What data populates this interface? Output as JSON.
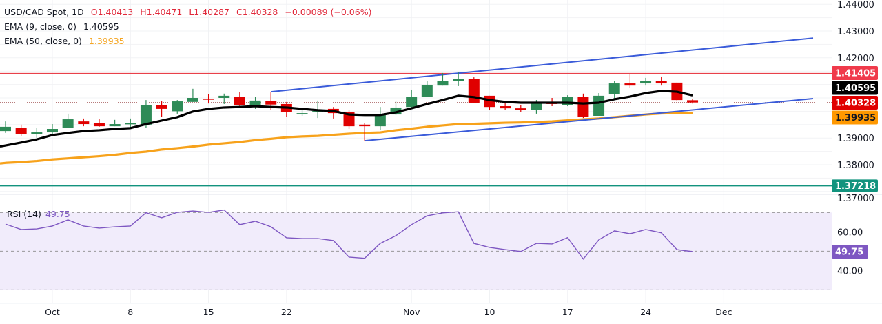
{
  "header": {
    "symbol": "USD/CAD Spot, 1D",
    "open": "O1.40413",
    "high": "H1.40471",
    "low": "L1.40287",
    "close": "C1.40328",
    "change": "−0.00089 (−0.06%)",
    "ema9_label": "EMA (9, close, 0)",
    "ema9_value": "1.40595",
    "ema50_label": "EMA (50, close, 0)",
    "ema50_value": "1.39935",
    "rsi_label": "RSI (14)",
    "rsi_value": "49.75"
  },
  "colors": {
    "up": "#2e8b57",
    "down": "#e00000",
    "ema9": "#000000",
    "ema50": "#f7a21b",
    "trendline": "#3a5bd9",
    "resistance": "#e8404a",
    "support": "#12937e",
    "rsi": "#7e57c2"
  },
  "chart_data": [
    {
      "type": "candlestick",
      "title": "USD/CAD Spot, 1D",
      "ylim": [
        1.37,
        1.44
      ],
      "grid": true,
      "y_ticks": [
        "1.44000",
        "1.43000",
        "1.42000",
        "1.39000",
        "1.38000",
        "1.37000"
      ],
      "x_ticks": [
        {
          "label": "Oct",
          "date": "Oct 1"
        },
        {
          "label": "8",
          "date": "Oct 8"
        },
        {
          "label": "15",
          "date": "Oct 15"
        },
        {
          "label": "22",
          "date": "Oct 22"
        },
        {
          "label": "Nov",
          "date": "Nov 3"
        },
        {
          "label": "10",
          "date": "Nov 10"
        },
        {
          "label": "17",
          "date": "Nov 17"
        },
        {
          "label": "24",
          "date": "Nov 24"
        },
        {
          "label": "Dec",
          "date": "Dec 1"
        }
      ],
      "dates": [
        "Sep 26",
        "Sep 29",
        "Sep 30",
        "Oct 1",
        "Oct 2",
        "Oct 3",
        "Oct 6",
        "Oct 7",
        "Oct 8",
        "Oct 9",
        "Oct 10",
        "Oct 13",
        "Oct 14",
        "Oct 15",
        "Oct 16",
        "Oct 17",
        "Oct 20",
        "Oct 21",
        "Oct 22",
        "Oct 23",
        "Oct 24",
        "Oct 27",
        "Oct 28",
        "Oct 29",
        "Oct 30",
        "Oct 31",
        "Nov 3",
        "Nov 4",
        "Nov 5",
        "Nov 6",
        "Nov 7",
        "Nov 10",
        "Nov 11",
        "Nov 12",
        "Nov 13",
        "Nov 14",
        "Nov 17",
        "Nov 18",
        "Nov 19",
        "Nov 20",
        "Nov 21",
        "Nov 24",
        "Nov 25",
        "Nov 26",
        "Nov 27"
      ],
      "ohlc": [
        [
          1.3926,
          1.3962,
          1.3919,
          1.3942
        ],
        [
          1.3937,
          1.395,
          1.3906,
          1.3916
        ],
        [
          1.3916,
          1.3937,
          1.3901,
          1.3921
        ],
        [
          1.3921,
          1.3952,
          1.3906,
          1.3934
        ],
        [
          1.3937,
          1.3991,
          1.3937,
          1.397
        ],
        [
          1.3962,
          1.3973,
          1.3944,
          1.3952
        ],
        [
          1.3957,
          1.397,
          1.3942,
          1.3944
        ],
        [
          1.3944,
          1.3968,
          1.3944,
          1.3952
        ],
        [
          1.3952,
          1.3973,
          1.3937,
          1.3955
        ],
        [
          1.395,
          1.4042,
          1.3937,
          1.4022
        ],
        [
          1.4022,
          1.4037,
          1.3978,
          1.4009
        ],
        [
          1.4,
          1.4042,
          1.3991,
          1.4037
        ],
        [
          1.4035,
          1.4084,
          1.4035,
          1.405
        ],
        [
          1.4047,
          1.4063,
          1.4029,
          1.4045
        ],
        [
          1.405,
          1.4066,
          1.4027,
          1.4058
        ],
        [
          1.4053,
          1.4071,
          1.4019,
          1.4022
        ],
        [
          1.4022,
          1.4053,
          1.4009,
          1.404
        ],
        [
          1.4038,
          1.4071,
          1.4006,
          1.4025
        ],
        [
          1.4027,
          1.4035,
          1.3978,
          1.3996
        ],
        [
          1.3991,
          1.4009,
          1.3983,
          1.3993
        ],
        [
          1.3998,
          1.404,
          1.3975,
          1.4001
        ],
        [
          1.4009,
          1.4016,
          1.3973,
          1.3993
        ],
        [
          1.3998,
          1.4006,
          1.3934,
          1.3944
        ],
        [
          1.395,
          1.3955,
          1.389,
          1.3944
        ],
        [
          1.3944,
          1.4016,
          1.3931,
          1.3986
        ],
        [
          1.3988,
          1.4037,
          1.3986,
          1.4014
        ],
        [
          1.4016,
          1.4081,
          1.4014,
          1.4055
        ],
        [
          1.4055,
          1.4112,
          1.4055,
          1.4099
        ],
        [
          1.4096,
          1.4143,
          1.4096,
          1.4112
        ],
        [
          1.4112,
          1.4148,
          1.4094,
          1.412
        ],
        [
          1.4122,
          1.4127,
          1.4032,
          1.4032
        ],
        [
          1.4058,
          1.4058,
          1.4004,
          1.4016
        ],
        [
          1.4019,
          1.4035,
          1.4006,
          1.4011
        ],
        [
          1.4011,
          1.4022,
          1.3996,
          1.4004
        ],
        [
          1.4004,
          1.4042,
          1.3991,
          1.4029
        ],
        [
          1.4032,
          1.405,
          1.4019,
          1.4027
        ],
        [
          1.4024,
          1.406,
          1.4019,
          1.4053
        ],
        [
          1.4053,
          1.4066,
          1.3975,
          1.398
        ],
        [
          1.3983,
          1.4068,
          1.3983,
          1.4058
        ],
        [
          1.4063,
          1.4112,
          1.4047,
          1.4104
        ],
        [
          1.4104,
          1.414,
          1.4086,
          1.4096
        ],
        [
          1.4104,
          1.4125,
          1.4096,
          1.4114
        ],
        [
          1.4112,
          1.413,
          1.4096,
          1.4104
        ],
        [
          1.4107,
          1.4107,
          1.404,
          1.4042
        ],
        [
          1.40413,
          1.40471,
          1.40287,
          1.40328
        ]
      ],
      "ema9": [
        1.3872,
        1.3883,
        1.3895,
        1.3911,
        1.3919,
        1.3926,
        1.3929,
        1.3934,
        1.3937,
        1.3952,
        1.3965,
        1.3978,
        1.3999,
        1.4009,
        1.4014,
        1.4016,
        1.4019,
        1.4016,
        1.4014,
        1.4009,
        1.4004,
        1.4001,
        1.3988,
        1.3986,
        1.3986,
        1.3996,
        1.4011,
        1.4027,
        1.4042,
        1.4058,
        1.4053,
        1.4042,
        1.4035,
        1.4032,
        1.4032,
        1.4032,
        1.4032,
        1.4029,
        1.4032,
        1.4045,
        1.4055,
        1.4068,
        1.4076,
        1.4073,
        1.40595
      ],
      "ema50": [
        1.3807,
        1.381,
        1.3814,
        1.382,
        1.3824,
        1.3828,
        1.3832,
        1.3837,
        1.3844,
        1.3849,
        1.3857,
        1.3862,
        1.3868,
        1.3875,
        1.388,
        1.3885,
        1.3892,
        1.3897,
        1.3903,
        1.3906,
        1.3908,
        1.3912,
        1.3916,
        1.3919,
        1.3921,
        1.3929,
        1.3935,
        1.3942,
        1.3947,
        1.3952,
        1.3953,
        1.3955,
        1.3957,
        1.3958,
        1.396,
        1.3962,
        1.3966,
        1.397,
        1.3973,
        1.3978,
        1.3983,
        1.3988,
        1.3992,
        1.3993,
        1.39935
      ],
      "trendlines": [
        {
          "from": {
            "date": "Oct 21",
            "price": 1.4073
          },
          "to": {
            "date": "Nov 27",
            "price": 1.4229
          },
          "extend": "right"
        },
        {
          "from": {
            "date": "Oct 29",
            "price": 1.389
          },
          "to": {
            "date": "Nov 27",
            "price": 1.4005
          },
          "extend": "right"
        }
      ],
      "horizontal_lines": [
        {
          "price": 1.41405,
          "label": "1.41405",
          "role": "resistance"
        },
        {
          "price": 1.37218,
          "label": "1.37218",
          "role": "support"
        }
      ],
      "price_labels": [
        {
          "label": "1.40595",
          "price": 1.40595,
          "role": "ema9"
        },
        {
          "label": "1.40328",
          "price": 1.40328,
          "role": "down"
        },
        {
          "label": "1.39935",
          "price": 1.39935,
          "role": "ema50"
        }
      ]
    },
    {
      "type": "line",
      "title": "RSI (14)",
      "ylim": [
        20,
        80
      ],
      "levels": [
        70,
        50,
        30
      ],
      "y_ticks": [
        "60.00",
        "40.00"
      ],
      "last_label": "49.75",
      "values": [
        64.0,
        61.2,
        61.5,
        63.0,
        66.2,
        63.0,
        61.9,
        62.6,
        63.0,
        69.9,
        67.3,
        70.1,
        70.8,
        70.1,
        71.3,
        63.7,
        65.5,
        62.6,
        56.9,
        56.5,
        56.5,
        55.5,
        46.9,
        46.3,
        54.0,
        58.0,
        63.7,
        68.3,
        69.8,
        70.4,
        54.0,
        51.9,
        50.8,
        49.8,
        54.0,
        53.7,
        57.0,
        45.9,
        55.9,
        60.5,
        59.0,
        61.2,
        59.5,
        50.8,
        49.75
      ]
    }
  ]
}
